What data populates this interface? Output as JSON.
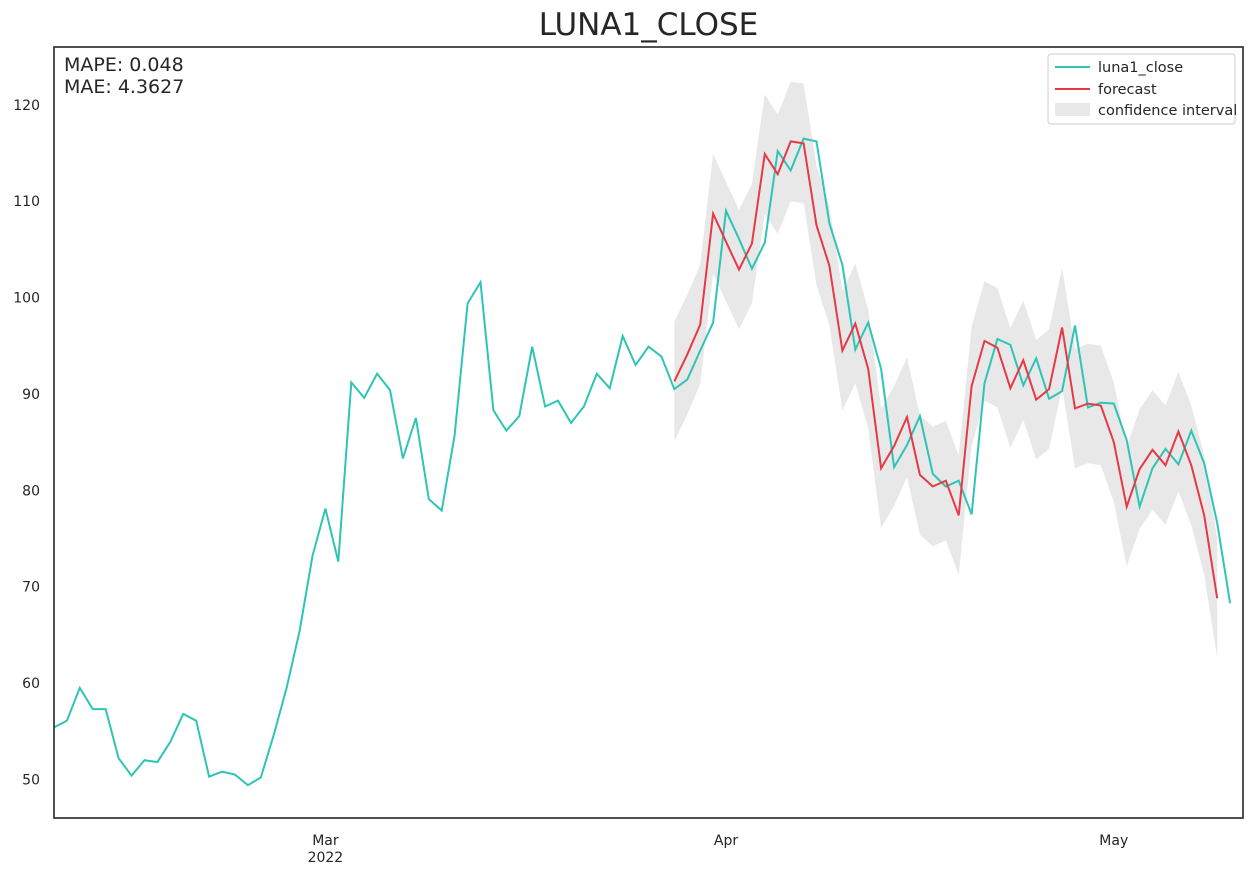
{
  "chart_data": {
    "type": "line",
    "title": "LUNA1_CLOSE",
    "xlabel": "",
    "ylabel": "",
    "metrics": {
      "mape": "MAPE: 0.048",
      "mae": "MAE: 4.3627"
    },
    "x_start": "2022-02-08",
    "x_range": [
      "2022-02-08",
      "2022-05-11"
    ],
    "ylim": [
      46,
      126
    ],
    "y_ticks": [
      50,
      60,
      70,
      80,
      90,
      100,
      110,
      120
    ],
    "x_ticks": [
      {
        "date": "2022-03-01",
        "label": "Mar",
        "sublabel": "2022"
      },
      {
        "date": "2022-04-01",
        "label": "Apr",
        "sublabel": ""
      },
      {
        "date": "2022-05-01",
        "label": "May",
        "sublabel": ""
      }
    ],
    "grid": false,
    "legend_position": "top-right",
    "colors": {
      "actual": "#2ec4b6",
      "forecast": "#e63946",
      "ci": "#cccccc"
    },
    "series": [
      {
        "name": "luna1_close",
        "start_date": "2022-02-08",
        "values": [
          55.4,
          56.1,
          59.5,
          57.3,
          57.3,
          52.2,
          50.4,
          52.0,
          51.8,
          53.9,
          56.8,
          56.1,
          50.3,
          50.8,
          50.5,
          49.4,
          50.2,
          54.6,
          59.5,
          65.4,
          73.2,
          78.1,
          72.6,
          91.2,
          89.6,
          92.1,
          90.4,
          83.3,
          87.5,
          79.1,
          77.9,
          85.7,
          99.4,
          101.6,
          88.3,
          86.2,
          87.7,
          94.9,
          88.7,
          89.3,
          87.0,
          88.7,
          92.1,
          90.6,
          96.0,
          93.0,
          94.9,
          93.9,
          90.5,
          91.5,
          94.5,
          97.4,
          109.0,
          106.1,
          103.0,
          105.7,
          115.2,
          113.2,
          116.5,
          116.2,
          107.7,
          103.4,
          94.6,
          97.4,
          92.6,
          82.4,
          84.7,
          87.7,
          81.7,
          80.4,
          81.0,
          77.5,
          91.1,
          95.7,
          95.1,
          90.9,
          93.7,
          89.5,
          90.3,
          97.1,
          88.6,
          89.1,
          89.0,
          85.2,
          78.3,
          82.3,
          84.3,
          82.7,
          86.2,
          82.8,
          76.6,
          68.3
        ]
      },
      {
        "name": "forecast",
        "start_date": "2022-03-28",
        "values": [
          91.3,
          94.1,
          97.2,
          108.7,
          105.8,
          102.9,
          105.6,
          114.9,
          112.8,
          116.2,
          116.0,
          107.5,
          103.3,
          94.5,
          97.3,
          92.6,
          82.3,
          84.6,
          87.6,
          81.6,
          80.4,
          81.0,
          77.4,
          90.8,
          95.5,
          94.8,
          90.6,
          93.5,
          89.4,
          90.5,
          96.9,
          88.5,
          89.0,
          88.8,
          85.0,
          78.3,
          82.2,
          84.2,
          82.6,
          86.1,
          82.6,
          77.4,
          68.8
        ]
      }
    ],
    "confidence_interval": {
      "name": "confidence interval",
      "start_date": "2022-03-28",
      "upper": [
        97.5,
        100.3,
        103.4,
        114.9,
        112.0,
        109.1,
        111.8,
        121.1,
        119.0,
        122.4,
        122.2,
        113.7,
        109.5,
        100.7,
        103.5,
        98.8,
        88.5,
        90.8,
        93.8,
        87.8,
        86.6,
        87.2,
        83.6,
        97.0,
        101.7,
        101.0,
        96.8,
        99.7,
        95.6,
        96.7,
        103.1,
        94.7,
        95.2,
        95.0,
        91.2,
        84.5,
        88.4,
        90.4,
        88.8,
        92.3,
        88.8,
        83.6,
        75.0
      ],
      "lower": [
        85.1,
        87.9,
        91.0,
        102.5,
        99.6,
        96.7,
        99.4,
        108.7,
        106.6,
        110.0,
        109.8,
        101.3,
        97.1,
        88.3,
        91.1,
        86.4,
        76.1,
        78.4,
        81.4,
        75.4,
        74.2,
        74.8,
        71.2,
        84.6,
        89.3,
        88.6,
        84.4,
        87.3,
        83.2,
        84.3,
        90.7,
        82.3,
        82.8,
        82.6,
        78.8,
        72.1,
        76.0,
        78.0,
        76.4,
        79.9,
        76.4,
        71.2,
        62.6
      ]
    }
  }
}
